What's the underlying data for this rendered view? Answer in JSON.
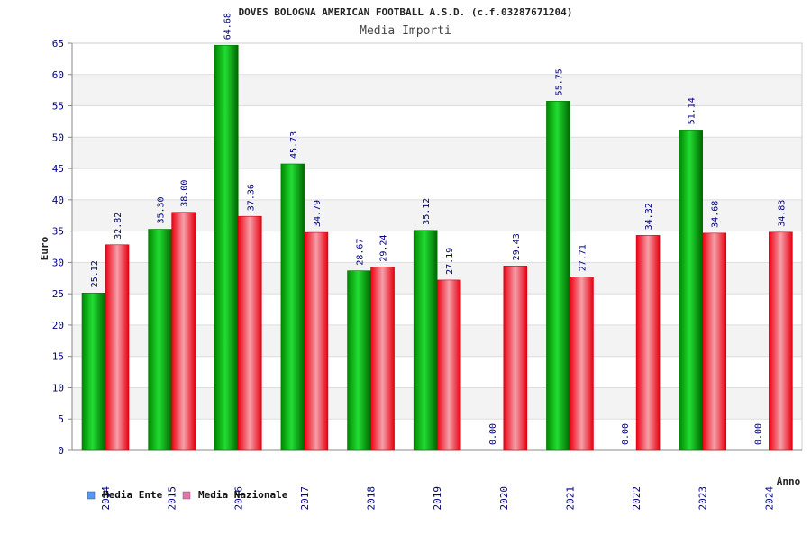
{
  "chart_data": {
    "type": "bar",
    "title": "DOVES BOLOGNA AMERICAN FOOTBALL A.S.D. (c.f.03287671204)",
    "subtitle": "Media Importi",
    "xlabel": "Anno",
    "ylabel": "Euro",
    "ylim": [
      0,
      65
    ],
    "yticks": [
      "0",
      "5",
      "10",
      "15",
      "20",
      "25",
      "30",
      "35",
      "40",
      "45",
      "50",
      "55",
      "60",
      "65"
    ],
    "grid": true,
    "legend_position": "bottom-left",
    "categories": [
      "2014",
      "2015",
      "2016",
      "2017",
      "2018",
      "2019",
      "2020",
      "2021",
      "2022",
      "2023",
      "2024"
    ],
    "series": [
      {
        "name": "Media Ente",
        "color": "#00aa00",
        "legend_color": "#5599ee",
        "values": [
          25.12,
          35.3,
          64.68,
          45.73,
          28.67,
          35.12,
          0.0,
          55.75,
          0.0,
          51.14,
          0.0
        ],
        "labels": [
          "25.12",
          "35.30",
          "64.68",
          "45.73",
          "28.67",
          "35.12",
          "0.00",
          "55.75",
          "0.00",
          "51.14",
          "0.00"
        ]
      },
      {
        "name": "Media Nazionale",
        "color": "#ee2233",
        "legend_color": "#dd77aa",
        "values": [
          32.82,
          38.0,
          37.36,
          34.79,
          29.24,
          27.19,
          29.43,
          27.71,
          34.32,
          34.68,
          34.83
        ],
        "labels": [
          "32.82",
          "38.00",
          "37.36",
          "34.79",
          "29.24",
          "27.19",
          "29.43",
          "27.71",
          "34.32",
          "34.68",
          "34.83"
        ]
      }
    ]
  }
}
